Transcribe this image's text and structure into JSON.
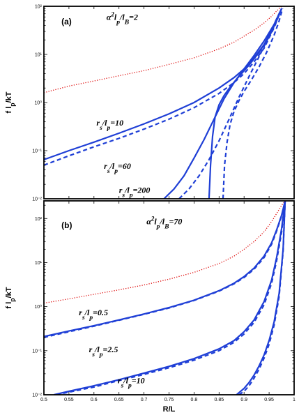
{
  "chart_data": [
    {
      "type": "line",
      "panel_label": "(a)",
      "annotation": "α²l_p/l_B=2",
      "xlabel": "",
      "ylabel": "f l_p/kT",
      "xlim": [
        0.5,
        1.0
      ],
      "ylim_log": [
        -2,
        2
      ],
      "yscale": "log",
      "yticks": [
        "10⁻²",
        "10⁻¹",
        "10⁰",
        "10¹",
        "10²"
      ],
      "xticks": [],
      "grid": false,
      "series": [
        {
          "label": "",
          "color": "#dd0000",
          "style": "dotted",
          "x": [
            0.5,
            0.55,
            0.6,
            0.65,
            0.7,
            0.75,
            0.8,
            0.85,
            0.88,
            0.9,
            0.92,
            0.94,
            0.955,
            0.97,
            0.98
          ],
          "y": [
            1.6,
            2.2,
            2.8,
            3.6,
            4.6,
            6.2,
            8.5,
            13,
            18,
            24,
            32,
            45,
            62,
            90,
            110
          ]
        },
        {
          "label": "r_s/l_p=10",
          "color": "#1f3fd6",
          "style": "solid",
          "x": [
            0.5,
            0.55,
            0.6,
            0.65,
            0.7,
            0.75,
            0.8,
            0.85,
            0.88,
            0.9,
            0.92,
            0.94,
            0.96,
            0.975
          ],
          "y": [
            0.065,
            0.1,
            0.15,
            0.23,
            0.36,
            0.58,
            1.0,
            2.0,
            3.3,
            5.0,
            8.5,
            16,
            40,
            90
          ]
        },
        {
          "label": "",
          "color": "#1f3fd6",
          "style": "dashed",
          "x": [
            0.5,
            0.55,
            0.6,
            0.65,
            0.7,
            0.75,
            0.8,
            0.85,
            0.88,
            0.9,
            0.92,
            0.94,
            0.96,
            0.975
          ],
          "y": [
            0.05,
            0.078,
            0.12,
            0.18,
            0.28,
            0.45,
            0.78,
            1.55,
            2.6,
            4.0,
            7.0,
            13.5,
            36,
            90
          ]
        },
        {
          "label": "r_s/l_p=60",
          "color": "#1f3fd6",
          "style": "solid",
          "x": [
            0.74,
            0.76,
            0.78,
            0.8,
            0.82,
            0.84,
            0.86,
            0.88,
            0.9,
            0.92,
            0.94,
            0.96,
            0.975
          ],
          "y": [
            0.01,
            0.016,
            0.03,
            0.07,
            0.17,
            0.45,
            1.2,
            2.6,
            5.0,
            9.5,
            19,
            42,
            90
          ]
        },
        {
          "label": "",
          "color": "#1f3fd6",
          "style": "dashed",
          "x": [
            0.77,
            0.79,
            0.81,
            0.83,
            0.85,
            0.87,
            0.89,
            0.91,
            0.93,
            0.95,
            0.965,
            0.975
          ],
          "y": [
            0.01,
            0.016,
            0.03,
            0.065,
            0.16,
            0.45,
            1.3,
            3.5,
            9.0,
            24,
            55,
            90
          ]
        },
        {
          "label": "",
          "color": "#1f3fd6",
          "style": "solid",
          "x": [
            0.83,
            0.833,
            0.837,
            0.842,
            0.85,
            0.86,
            0.875,
            0.89,
            0.91,
            0.93,
            0.95,
            0.965,
            0.975
          ],
          "y": [
            0.01,
            0.05,
            0.2,
            0.5,
            0.9,
            1.4,
            2.3,
            3.5,
            6.0,
            11,
            23,
            50,
            90
          ]
        },
        {
          "label": "r_s/l_p=200",
          "color": "#1f3fd6",
          "style": "dashed",
          "x": [
            0.858,
            0.861,
            0.866,
            0.872,
            0.88,
            0.89,
            0.9,
            0.915,
            0.93,
            0.945,
            0.96,
            0.97,
            0.977
          ],
          "y": [
            0.01,
            0.05,
            0.15,
            0.35,
            0.65,
            1.1,
            1.7,
            3.0,
            5.5,
            11,
            25,
            50,
            90
          ]
        }
      ]
    },
    {
      "type": "line",
      "panel_label": "(b)",
      "annotation": "α²l_p/l_B=70",
      "xlabel": "R/L",
      "ylabel": "f l_p/kT",
      "xlim": [
        0.5,
        1.0
      ],
      "ylim_log": [
        -2,
        2.4
      ],
      "yscale": "log",
      "yticks": [
        "10⁻²",
        "10⁻¹",
        "10⁰",
        "10¹",
        "10²"
      ],
      "xticks": [
        "0.5",
        "0.55",
        "0.6",
        "0.65",
        "0.7",
        "0.75",
        "0.8",
        "0.85",
        "0.9",
        "0.95",
        "1"
      ],
      "grid": false,
      "series": [
        {
          "label": "",
          "color": "#dd0000",
          "style": "dotted",
          "x": [
            0.5,
            0.55,
            0.6,
            0.65,
            0.7,
            0.75,
            0.8,
            0.85,
            0.88,
            0.9,
            0.92,
            0.94,
            0.955,
            0.965,
            0.975,
            0.982
          ],
          "y": [
            1.2,
            1.5,
            1.9,
            2.4,
            3.1,
            4.2,
            6.0,
            9.5,
            14,
            20,
            30,
            50,
            85,
            130,
            200,
            250
          ]
        },
        {
          "label": "r_s/l_p=0.5",
          "color": "#1f3fd6",
          "style": "solid",
          "x": [
            0.5,
            0.55,
            0.6,
            0.65,
            0.7,
            0.75,
            0.8,
            0.85,
            0.88,
            0.9,
            0.92,
            0.94,
            0.955,
            0.965,
            0.975,
            0.982
          ],
          "y": [
            0.21,
            0.28,
            0.37,
            0.5,
            0.68,
            0.95,
            1.4,
            2.3,
            3.4,
            4.8,
            7.5,
            14,
            28,
            55,
            120,
            250
          ]
        },
        {
          "label": "",
          "color": "#1f3fd6",
          "style": "dashed",
          "x": [
            0.5,
            0.55,
            0.6,
            0.65,
            0.7,
            0.75,
            0.8,
            0.85,
            0.88,
            0.9,
            0.92,
            0.94,
            0.955,
            0.965,
            0.975,
            0.982
          ],
          "y": [
            0.2,
            0.27,
            0.36,
            0.49,
            0.67,
            0.93,
            1.38,
            2.25,
            3.3,
            4.6,
            7.1,
            13,
            26,
            52,
            115,
            250
          ]
        },
        {
          "label": "r_s/l_p=2.5",
          "color": "#1f3fd6",
          "style": "solid",
          "x": [
            0.52,
            0.55,
            0.6,
            0.65,
            0.7,
            0.75,
            0.8,
            0.85,
            0.88,
            0.9,
            0.92,
            0.94,
            0.955,
            0.965,
            0.975,
            0.982
          ],
          "y": [
            0.01,
            0.012,
            0.016,
            0.022,
            0.031,
            0.044,
            0.066,
            0.11,
            0.17,
            0.27,
            0.5,
            1.3,
            4.0,
            13,
            60,
            250
          ]
        },
        {
          "label": "",
          "color": "#1f3fd6",
          "style": "dashed",
          "x": [
            0.525,
            0.55,
            0.6,
            0.65,
            0.7,
            0.75,
            0.8,
            0.85,
            0.88,
            0.9,
            0.92,
            0.94,
            0.955,
            0.965,
            0.975,
            0.982
          ],
          "y": [
            0.01,
            0.0115,
            0.015,
            0.021,
            0.029,
            0.041,
            0.061,
            0.1,
            0.155,
            0.24,
            0.44,
            1.1,
            3.4,
            11,
            50,
            250
          ]
        },
        {
          "label": "r_s/l_p=10",
          "color": "#1f3fd6",
          "style": "solid",
          "x": [
            0.885,
            0.9,
            0.91,
            0.92,
            0.93,
            0.94,
            0.95,
            0.96,
            0.97,
            0.978,
            0.982
          ],
          "y": [
            0.01,
            0.014,
            0.019,
            0.028,
            0.045,
            0.08,
            0.17,
            0.45,
            2.0,
            20,
            250
          ]
        },
        {
          "label": "",
          "color": "#1f3fd6",
          "style": "dashed",
          "x": [
            0.89,
            0.9,
            0.91,
            0.92,
            0.93,
            0.94,
            0.95,
            0.96,
            0.97,
            0.978,
            0.982
          ],
          "y": [
            0.01,
            0.012,
            0.016,
            0.024,
            0.038,
            0.068,
            0.14,
            0.38,
            1.7,
            18,
            250
          ]
        }
      ]
    }
  ]
}
